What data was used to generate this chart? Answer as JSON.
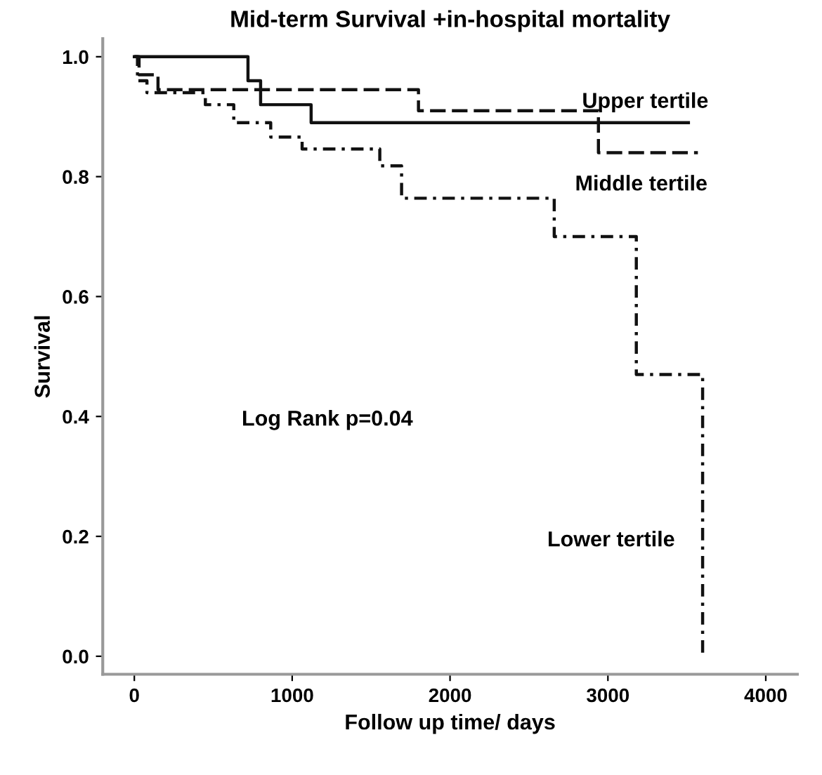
{
  "chart_data": {
    "type": "step",
    "title": "Mid-term Survival +in-hospital mortality",
    "xlabel": "Follow up time/ days",
    "ylabel": "Survival",
    "xlim": [
      -200,
      4200
    ],
    "ylim": [
      -0.03,
      1.03
    ],
    "xticks": [
      0,
      1000,
      2000,
      3000,
      4000
    ],
    "yticks": [
      {
        "value": 0,
        "label": "0.0"
      },
      {
        "value": 0.2,
        "label": "0.2"
      },
      {
        "value": 0.4,
        "label": "0.4"
      },
      {
        "value": 0.6,
        "label": "0.6"
      },
      {
        "value": 0.8,
        "label": "0.8"
      },
      {
        "value": 1,
        "label": "1.0"
      }
    ],
    "grid": false,
    "series": [
      {
        "color": "#111111",
        "line_style": "solid",
        "x": [
          0,
          720,
          800,
          1120,
          3510
        ],
        "values": [
          1.0,
          0.96,
          0.92,
          0.89,
          0.89
        ]
      },
      {
        "color": "#111111",
        "line_style": "dashed",
        "x": [
          0,
          30,
          150,
          1800,
          2940,
          3570
        ],
        "values": [
          1.0,
          0.97,
          0.945,
          0.91,
          0.84,
          0.84
        ]
      },
      {
        "color": "#111111",
        "line_style": "dotted",
        "x": [
          0,
          20,
          80,
          450,
          630,
          864,
          1063,
          1555,
          1693,
          2660,
          3180,
          3600,
          3600
        ],
        "values": [
          1.0,
          0.96,
          0.94,
          0.92,
          0.89,
          0.866,
          0.846,
          0.818,
          0.764,
          0.7,
          0.47,
          0.47,
          0.0
        ]
      }
    ],
    "annotations": [
      "Upper tertile",
      "Middle tertile",
      "Lower tertile",
      "Log Rank p=0.04"
    ]
  }
}
